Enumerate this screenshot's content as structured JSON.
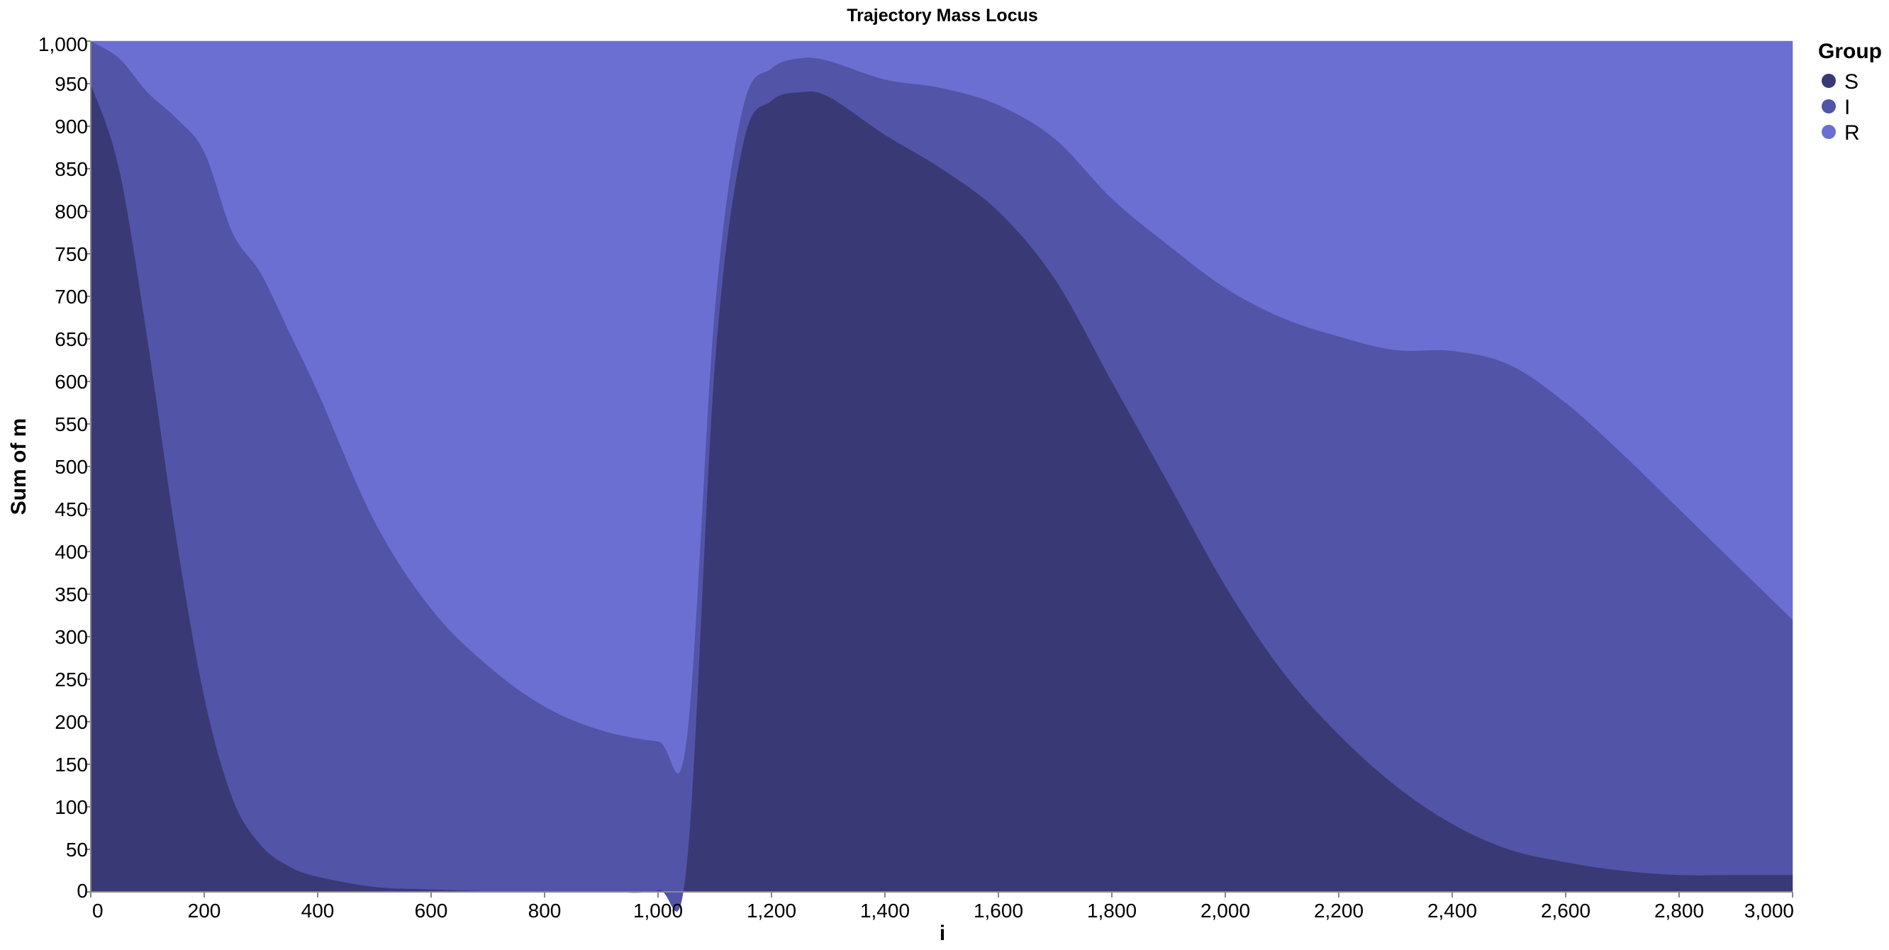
{
  "chart_data": {
    "type": "area",
    "stacked": true,
    "title": "Trajectory Mass Locus",
    "xlabel": "i",
    "ylabel": "Sum of m",
    "xlim": [
      0,
      3000
    ],
    "ylim": [
      0,
      1000
    ],
    "x_ticks": [
      0,
      200,
      400,
      600,
      800,
      1000,
      1200,
      1400,
      1600,
      1800,
      2000,
      2200,
      2400,
      2600,
      2800,
      3000
    ],
    "x_tick_labels": [
      "0",
      "200",
      "400",
      "600",
      "800",
      "1,000",
      "1,200",
      "1,400",
      "1,600",
      "1,800",
      "2,000",
      "2,200",
      "2,400",
      "2,600",
      "2,800",
      "3,000"
    ],
    "y_ticks": [
      0,
      50,
      100,
      150,
      200,
      250,
      300,
      350,
      400,
      450,
      500,
      550,
      600,
      650,
      700,
      750,
      800,
      850,
      900,
      950,
      1000
    ],
    "y_tick_labels": [
      "0",
      "50",
      "100",
      "150",
      "200",
      "250",
      "300",
      "350",
      "400",
      "450",
      "500",
      "550",
      "600",
      "650",
      "700",
      "750",
      "800",
      "850",
      "900",
      "950",
      "1,000"
    ],
    "grid": false,
    "legend": {
      "title": "Group",
      "position": "top-right"
    },
    "x": [
      0,
      50,
      100,
      150,
      200,
      250,
      300,
      350,
      400,
      500,
      600,
      700,
      800,
      900,
      1000,
      1050,
      1100,
      1150,
      1200,
      1250,
      1300,
      1400,
      1500,
      1600,
      1700,
      1800,
      1900,
      2000,
      2100,
      2200,
      2300,
      2400,
      2500,
      2600,
      2700,
      2800,
      2900,
      3000
    ],
    "series": [
      {
        "name": "S",
        "color": "#393976",
        "values": [
          950,
          850,
          650,
          420,
          230,
          110,
          55,
          30,
          18,
          6,
          3,
          1,
          0,
          0,
          2,
          30,
          620,
          880,
          930,
          940,
          935,
          890,
          850,
          800,
          720,
          600,
          480,
          360,
          260,
          185,
          125,
          80,
          50,
          35,
          25,
          20,
          20,
          20
        ]
      },
      {
        "name": "I",
        "color": "#5154a7",
        "values": [
          50,
          130,
          290,
          490,
          640,
          665,
          672,
          628,
          570,
          430,
          330,
          265,
          218,
          190,
          175,
          148,
          65,
          43,
          38,
          40,
          42,
          65,
          95,
          125,
          165,
          215,
          280,
          350,
          415,
          468,
          512,
          556,
          570,
          540,
          490,
          430,
          365,
          300
        ]
      },
      {
        "name": "R",
        "color": "#6b6fd1",
        "values": [
          0,
          20,
          60,
          90,
          130,
          225,
          273,
          342,
          412,
          564,
          667,
          734,
          782,
          810,
          823,
          822,
          315,
          77,
          32,
          20,
          23,
          45,
          55,
          75,
          115,
          185,
          240,
          290,
          325,
          347,
          363,
          364,
          380,
          425,
          485,
          550,
          615,
          680
        ]
      }
    ]
  }
}
